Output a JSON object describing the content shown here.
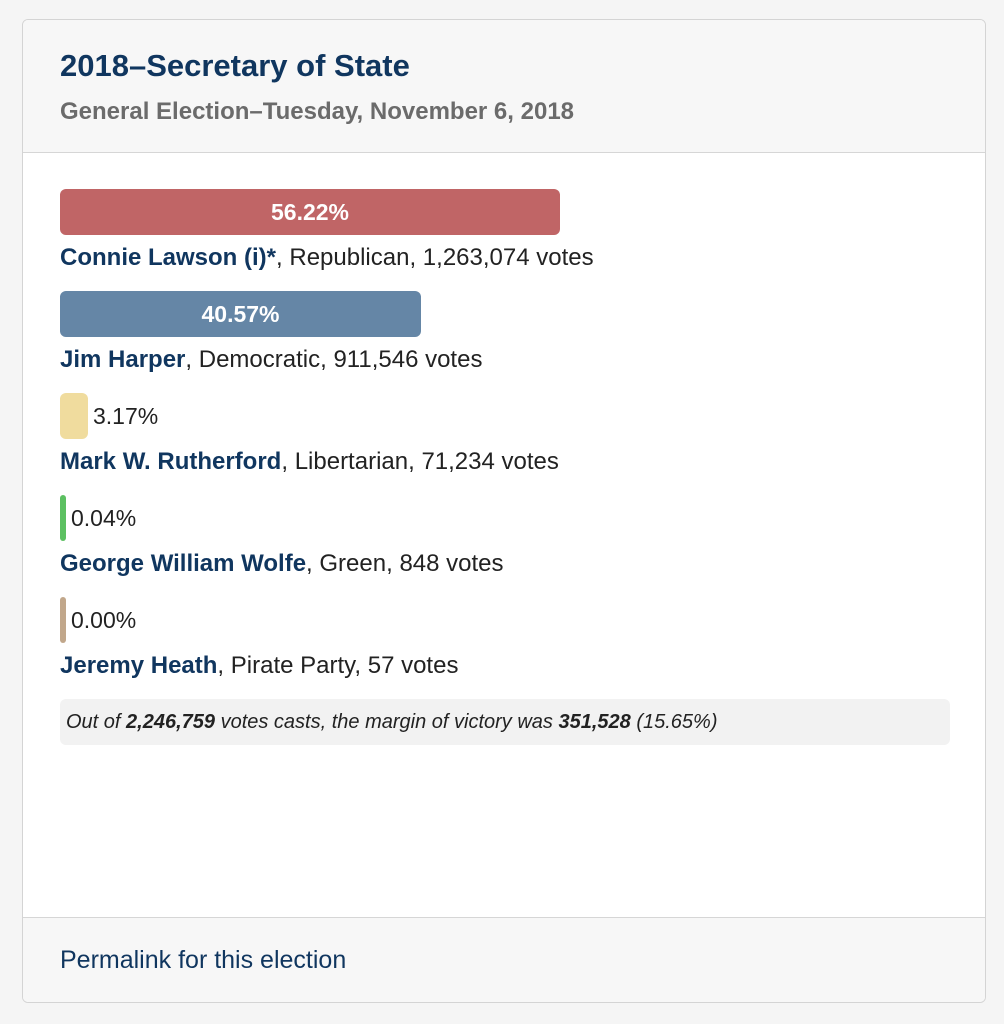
{
  "header": {
    "title": "2018–Secretary of State",
    "subtitle": "General Election–Tuesday, November 6, 2018"
  },
  "results": [
    {
      "name": "Connie Lawson",
      "suffix": " (i)*",
      "party": "Republican",
      "votes": "1,263,074 votes",
      "percent_label": "56.22%",
      "share": 0.5622,
      "color": "#c06566"
    },
    {
      "name": "Jim Harper",
      "suffix": "",
      "party": "Democratic",
      "votes": "911,546 votes",
      "percent_label": "40.57%",
      "share": 0.4057,
      "color": "#6586a6"
    },
    {
      "name": "Mark W. Rutherford",
      "suffix": "",
      "party": "Libertarian",
      "votes": "71,234 votes",
      "percent_label": "3.17%",
      "share": 0.0317,
      "color": "#f0dc9e"
    },
    {
      "name": "George William Wolfe",
      "suffix": "",
      "party": "Green",
      "votes": "848 votes",
      "percent_label": "0.04%",
      "share": 0.0004,
      "color": "#5cc061"
    },
    {
      "name": "Jeremy Heath",
      "suffix": "",
      "party": "Pirate Party",
      "votes": "57 votes",
      "percent_label": "0.00%",
      "share": 0.0,
      "color": "#c1a78b"
    }
  ],
  "summary": {
    "prefix": "Out of ",
    "total_votes": "2,246,759",
    "middle": " votes casts, the margin of victory was ",
    "margin_votes": "351,528",
    "margin_pct": " (15.65%)"
  },
  "footer": {
    "permalink_label": "Permalink for this election"
  }
}
